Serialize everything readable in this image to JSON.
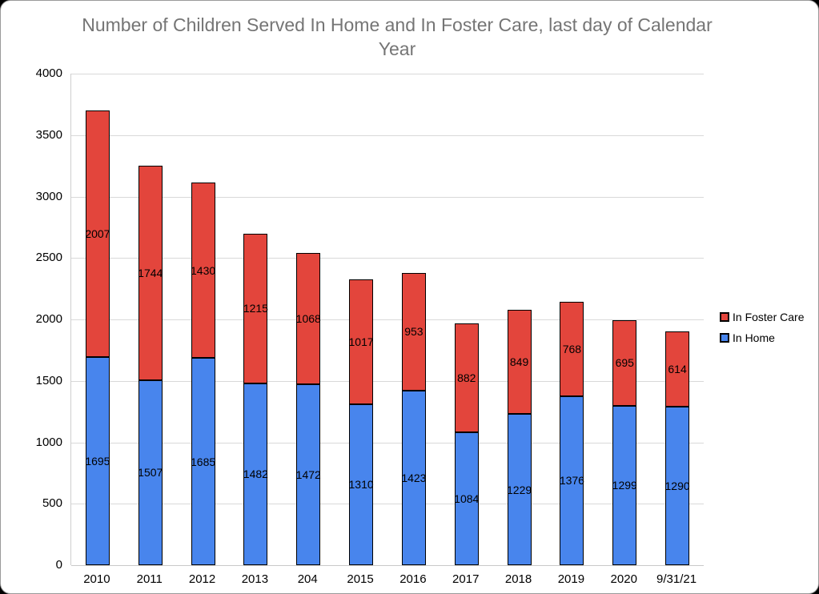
{
  "chart": {
    "title": "Number of Children Served In Home and In Foster Care, last day of Calendar Year",
    "title_color": "#757575"
  },
  "chart_data": {
    "type": "bar",
    "stacked": true,
    "title": "Number of Children Served In Home and In Foster Care, last day of Calendar Year",
    "xlabel": "",
    "ylabel": "",
    "categories": [
      "2010",
      "2011",
      "2012",
      "2013",
      "204",
      "2015",
      "2016",
      "2017",
      "2018",
      "2019",
      "2020",
      "9/31/21"
    ],
    "series": [
      {
        "name": "In Home",
        "color": "#4885ED",
        "values": [
          1695,
          1507,
          1685,
          1482,
          1472,
          1310,
          1423,
          1084,
          1229,
          1376,
          1299,
          1290
        ]
      },
      {
        "name": "In Foster Care",
        "color": "#E3453C",
        "values": [
          2007,
          1744,
          1430,
          1215,
          1068,
          1017,
          953,
          882,
          849,
          768,
          695,
          614
        ]
      }
    ],
    "ylim": [
      0,
      4000
    ],
    "yticks": [
      0,
      500,
      1000,
      1500,
      2000,
      2500,
      3000,
      3500,
      4000
    ],
    "grid": true,
    "legend_position": "right",
    "legend_order_series_indexes": [
      1,
      0
    ],
    "data_labels": true,
    "bar_border_color": "#000000",
    "gridline_color": "#D9D9D9"
  }
}
